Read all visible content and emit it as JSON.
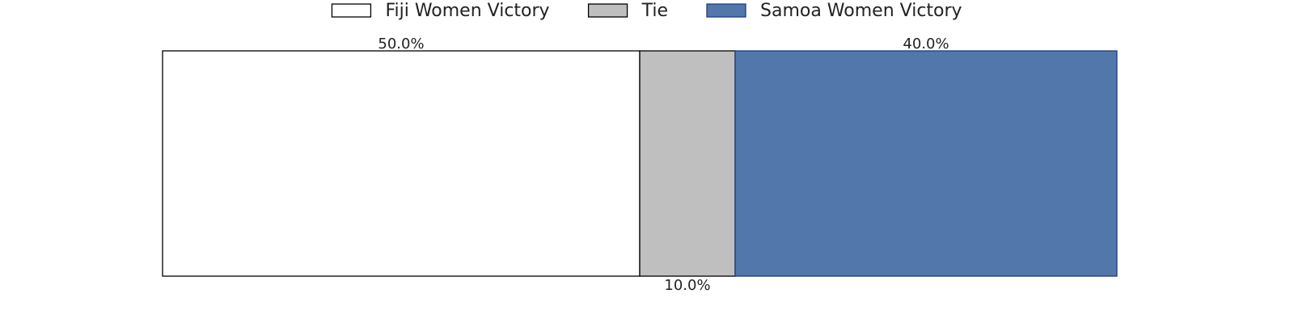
{
  "chart_data": {
    "type": "stacked-bar",
    "series": [
      {
        "name": "Fiji Women Victory",
        "color": "#ffffff",
        "edge": "#000000",
        "values": [
          50
        ],
        "value_labels": [
          "50.0%"
        ]
      },
      {
        "name": "Tie",
        "color": "#bfbfbf",
        "edge": "#000000",
        "values": [
          10
        ],
        "value_labels": [
          "10.0%"
        ]
      },
      {
        "name": "Samoa Women Victory",
        "color": "#5277ab",
        "edge": "#1f3d7a",
        "values": [
          40
        ],
        "value_labels": [
          "40.0%"
        ]
      }
    ],
    "legend": "top"
  }
}
